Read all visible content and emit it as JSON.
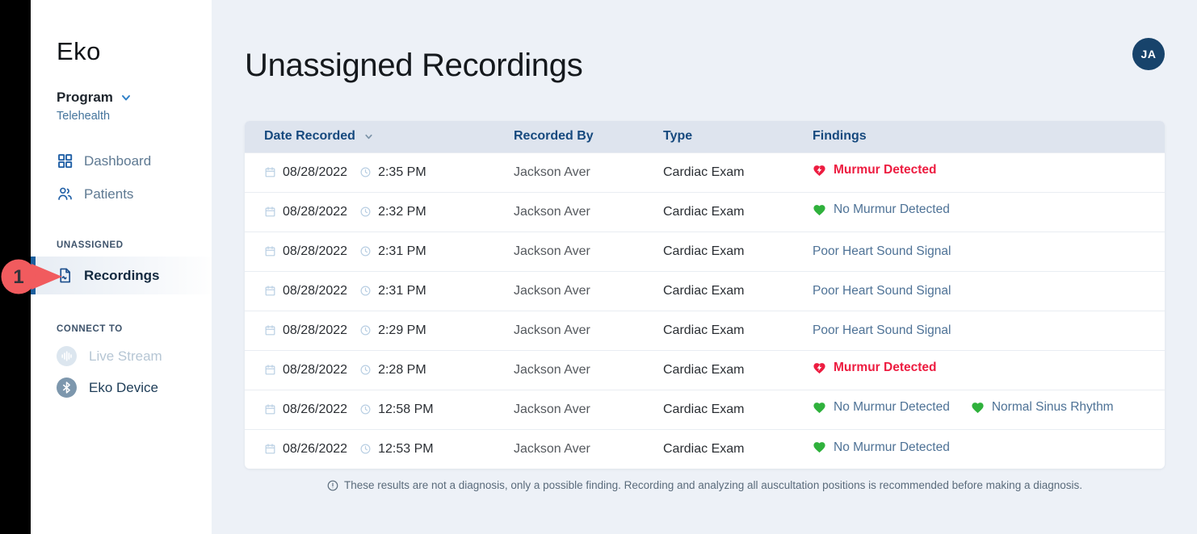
{
  "brand": {
    "logo_text": "Eko"
  },
  "annotation_overlay": {
    "step_label": "1"
  },
  "sidebar": {
    "program": {
      "label": "Program",
      "selected": "Telehealth"
    },
    "nav": [
      {
        "label": "Dashboard",
        "icon": "grid-icon"
      },
      {
        "label": "Patients",
        "icon": "people-icon"
      }
    ],
    "unassigned_section": {
      "label": "UNASSIGNED",
      "items": [
        {
          "label": "Recordings",
          "icon": "recording-document-icon",
          "active": true
        }
      ]
    },
    "connect_section": {
      "label": "CONNECT TO",
      "items": [
        {
          "label": "Live Stream",
          "icon": "waveform-icon",
          "disabled": true
        },
        {
          "label": "Eko Device",
          "icon": "bluetooth-icon",
          "disabled": false
        }
      ]
    }
  },
  "header": {
    "title": "Unassigned Recordings",
    "avatar_initials": "JA"
  },
  "table": {
    "columns": [
      {
        "label": "Date Recorded",
        "sortable": true
      },
      {
        "label": "Recorded By",
        "sortable": false
      },
      {
        "label": "Type",
        "sortable": false
      },
      {
        "label": "Findings",
        "sortable": false
      }
    ],
    "rows": [
      {
        "date": "08/28/2022",
        "time": "2:35 PM",
        "recorded_by": "Jackson Aver",
        "type": "Cardiac Exam",
        "findings": [
          {
            "label": "Murmur Detected",
            "status": "alert"
          }
        ]
      },
      {
        "date": "08/28/2022",
        "time": "2:32 PM",
        "recorded_by": "Jackson Aver",
        "type": "Cardiac Exam",
        "findings": [
          {
            "label": "No Murmur Detected",
            "status": "normal"
          }
        ]
      },
      {
        "date": "08/28/2022",
        "time": "2:31 PM",
        "recorded_by": "Jackson Aver",
        "type": "Cardiac Exam",
        "findings": [
          {
            "label": "Poor Heart Sound Signal",
            "status": "none"
          }
        ]
      },
      {
        "date": "08/28/2022",
        "time": "2:31 PM",
        "recorded_by": "Jackson Aver",
        "type": "Cardiac Exam",
        "findings": [
          {
            "label": "Poor Heart Sound Signal",
            "status": "none"
          }
        ]
      },
      {
        "date": "08/28/2022",
        "time": "2:29 PM",
        "recorded_by": "Jackson Aver",
        "type": "Cardiac Exam",
        "findings": [
          {
            "label": "Poor Heart Sound Signal",
            "status": "none"
          }
        ]
      },
      {
        "date": "08/28/2022",
        "time": "2:28 PM",
        "recorded_by": "Jackson Aver",
        "type": "Cardiac Exam",
        "findings": [
          {
            "label": "Murmur Detected",
            "status": "alert"
          }
        ]
      },
      {
        "date": "08/26/2022",
        "time": "12:58 PM",
        "recorded_by": "Jackson Aver",
        "type": "Cardiac Exam",
        "findings": [
          {
            "label": "No Murmur Detected",
            "status": "normal"
          },
          {
            "label": "Normal Sinus Rhythm",
            "status": "normal"
          }
        ]
      },
      {
        "date": "08/26/2022",
        "time": "12:53 PM",
        "recorded_by": "Jackson Aver",
        "type": "Cardiac Exam",
        "findings": [
          {
            "label": "No Murmur Detected",
            "status": "normal"
          }
        ]
      }
    ]
  },
  "footer": {
    "disclaimer": "These results are not a diagnosis, only a possible finding. Recording and analyzing all auscultation positions is recommended before making a diagnosis."
  },
  "icons": {
    "chevron-down-icon": "blue v chevron",
    "grid-icon": "2x2 outlined squares",
    "people-icon": "two person silhouettes",
    "recording-document-icon": "document with waveform squiggle",
    "waveform-icon": "audio waveform bars in circle",
    "bluetooth-icon": "bluetooth rune in circle",
    "sort-chevron-icon": "small grey chevron down",
    "calendar-icon": "calendar outline",
    "clock-icon": "clock outline",
    "heart-alert-icon": "red heart with white lightning bolt",
    "heart-normal-icon": "solid green heart",
    "info-icon": "exclamation mark in circle",
    "step-marker-icon": "red numbered circle with right arrow"
  },
  "colors": {
    "alert_red": "#ED1C40",
    "normal_green": "#2FB13C",
    "finding_text_blue": "#4E7296",
    "header_navy": "#16497E",
    "avatar_navy": "#17436B",
    "annotation_red": "#F15B5E",
    "active_item_blue": "#1B5F9E",
    "sidebar_icon_blue": "#2160A6",
    "page_background": "#EDF1F7"
  }
}
